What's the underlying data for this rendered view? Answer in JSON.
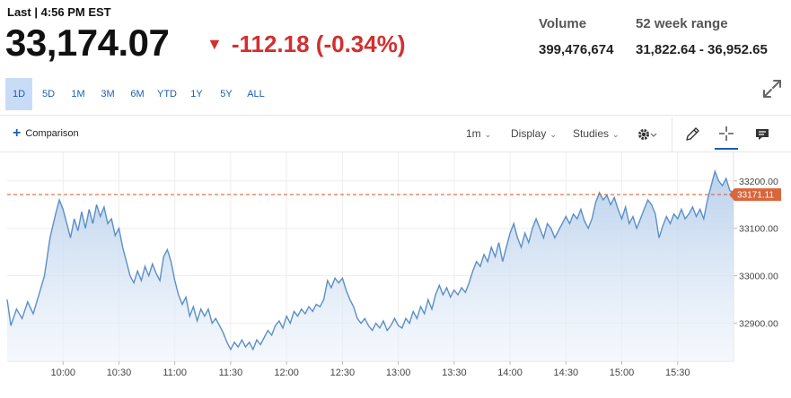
{
  "header": {
    "last_label": "Last | 4:56 PM EST",
    "price": "33,174.07",
    "change_arrow": "▼",
    "change": "-112.18 (-0.34%)",
    "change_color": "#d32f2f",
    "volume_label": "Volume",
    "volume_value": "399,476,674",
    "range_label": "52 week range",
    "range_value": "31,822.64 - 36,952.65"
  },
  "range_tabs": [
    "1D",
    "5D",
    "1M",
    "3M",
    "6M",
    "YTD",
    "1Y",
    "5Y",
    "ALL"
  ],
  "active_tab": "1D",
  "toolbar": {
    "comparison_label": "Comparison",
    "interval_label": "1m",
    "display_label": "Display",
    "studies_label": "Studies",
    "icons": [
      "gear-icon",
      "pencil-icon",
      "crosshair-icon",
      "comment-icon"
    ]
  },
  "chart_data": {
    "type": "area",
    "title": "",
    "xlabel": "",
    "ylabel": "",
    "x_ticks": [
      "10:00",
      "10:30",
      "11:00",
      "11:30",
      "12:00",
      "12:30",
      "13:00",
      "13:30",
      "14:00",
      "14:30",
      "15:00",
      "15:30"
    ],
    "y_ticks": [
      33200,
      33100,
      33000,
      32900
    ],
    "ylim": [
      32820,
      33260
    ],
    "xlim": [
      "09:30",
      "16:00"
    ],
    "grid": true,
    "reference_line": {
      "value": 33171.11,
      "label": "33171.11",
      "color": "#d9663a"
    },
    "series": [
      {
        "line_color": "#5b8fc7",
        "points": [
          [
            "09:30",
            32950
          ],
          [
            "09:32",
            32895
          ],
          [
            "09:35",
            32930
          ],
          [
            "09:38",
            32910
          ],
          [
            "09:41",
            32945
          ],
          [
            "09:44",
            32920
          ],
          [
            "09:47",
            32960
          ],
          [
            "09:50",
            33000
          ],
          [
            "09:53",
            33080
          ],
          [
            "09:56",
            33130
          ],
          [
            "09:58",
            33160
          ],
          [
            "10:00",
            33140
          ],
          [
            "10:02",
            33110
          ],
          [
            "10:04",
            33080
          ],
          [
            "10:06",
            33120
          ],
          [
            "10:08",
            33095
          ],
          [
            "10:10",
            33135
          ],
          [
            "10:12",
            33100
          ],
          [
            "10:14",
            33140
          ],
          [
            "10:16",
            33110
          ],
          [
            "10:18",
            33150
          ],
          [
            "10:20",
            33125
          ],
          [
            "10:22",
            33145
          ],
          [
            "10:24",
            33110
          ],
          [
            "10:26",
            33120
          ],
          [
            "10:28",
            33085
          ],
          [
            "10:30",
            33100
          ],
          [
            "10:32",
            33060
          ],
          [
            "10:34",
            33030
          ],
          [
            "10:36",
            33000
          ],
          [
            "10:38",
            32985
          ],
          [
            "10:40",
            33010
          ],
          [
            "10:42",
            32990
          ],
          [
            "10:44",
            33020
          ],
          [
            "10:46",
            33000
          ],
          [
            "10:48",
            33025
          ],
          [
            "10:50",
            33005
          ],
          [
            "10:52",
            32990
          ],
          [
            "10:54",
            33040
          ],
          [
            "10:56",
            33055
          ],
          [
            "10:58",
            33030
          ],
          [
            "11:00",
            32990
          ],
          [
            "11:02",
            32960
          ],
          [
            "11:04",
            32940
          ],
          [
            "11:06",
            32955
          ],
          [
            "11:08",
            32915
          ],
          [
            "11:10",
            32935
          ],
          [
            "11:12",
            32905
          ],
          [
            "11:14",
            32930
          ],
          [
            "11:16",
            32915
          ],
          [
            "11:18",
            32930
          ],
          [
            "11:20",
            32900
          ],
          [
            "11:22",
            32910
          ],
          [
            "11:24",
            32895
          ],
          [
            "11:26",
            32880
          ],
          [
            "11:28",
            32860
          ],
          [
            "11:30",
            32845
          ],
          [
            "11:32",
            32860
          ],
          [
            "11:34",
            32850
          ],
          [
            "11:36",
            32865
          ],
          [
            "11:38",
            32850
          ],
          [
            "11:40",
            32860
          ],
          [
            "11:42",
            32845
          ],
          [
            "11:44",
            32865
          ],
          [
            "11:46",
            32855
          ],
          [
            "11:48",
            32870
          ],
          [
            "11:50",
            32885
          ],
          [
            "11:52",
            32875
          ],
          [
            "11:54",
            32895
          ],
          [
            "11:56",
            32905
          ],
          [
            "11:58",
            32890
          ],
          [
            "12:00",
            32915
          ],
          [
            "12:02",
            32900
          ],
          [
            "12:04",
            32925
          ],
          [
            "12:06",
            32915
          ],
          [
            "12:08",
            32930
          ],
          [
            "12:10",
            32920
          ],
          [
            "12:12",
            32935
          ],
          [
            "12:14",
            32925
          ],
          [
            "12:16",
            32940
          ],
          [
            "12:18",
            32935
          ],
          [
            "12:20",
            32950
          ],
          [
            "12:22",
            32990
          ],
          [
            "12:24",
            32975
          ],
          [
            "12:26",
            32995
          ],
          [
            "12:28",
            32985
          ],
          [
            "12:30",
            32995
          ],
          [
            "12:32",
            32970
          ],
          [
            "12:34",
            32950
          ],
          [
            "12:36",
            32935
          ],
          [
            "12:38",
            32910
          ],
          [
            "12:40",
            32900
          ],
          [
            "12:42",
            32910
          ],
          [
            "12:44",
            32895
          ],
          [
            "12:46",
            32885
          ],
          [
            "12:48",
            32900
          ],
          [
            "12:50",
            32890
          ],
          [
            "12:52",
            32905
          ],
          [
            "12:54",
            32885
          ],
          [
            "12:56",
            32895
          ],
          [
            "12:58",
            32910
          ],
          [
            "13:00",
            32895
          ],
          [
            "13:02",
            32890
          ],
          [
            "13:04",
            32910
          ],
          [
            "13:06",
            32900
          ],
          [
            "13:08",
            32925
          ],
          [
            "13:10",
            32910
          ],
          [
            "13:12",
            32935
          ],
          [
            "13:14",
            32920
          ],
          [
            "13:16",
            32950
          ],
          [
            "13:18",
            32930
          ],
          [
            "13:20",
            32960
          ],
          [
            "13:22",
            32980
          ],
          [
            "13:24",
            32960
          ],
          [
            "13:26",
            32975
          ],
          [
            "13:28",
            32955
          ],
          [
            "13:30",
            32970
          ],
          [
            "13:32",
            32960
          ],
          [
            "13:34",
            32975
          ],
          [
            "13:36",
            32965
          ],
          [
            "13:38",
            32985
          ],
          [
            "13:40",
            33010
          ],
          [
            "13:42",
            33030
          ],
          [
            "13:44",
            33020
          ],
          [
            "13:46",
            33045
          ],
          [
            "13:48",
            33030
          ],
          [
            "13:50",
            33060
          ],
          [
            "13:52",
            33040
          ],
          [
            "13:54",
            33070
          ],
          [
            "13:56",
            33030
          ],
          [
            "13:58",
            33060
          ],
          [
            "14:00",
            33090
          ],
          [
            "14:02",
            33110
          ],
          [
            "14:04",
            33080
          ],
          [
            "14:06",
            33060
          ],
          [
            "14:08",
            33090
          ],
          [
            "14:10",
            33070
          ],
          [
            "14:12",
            33100
          ],
          [
            "14:14",
            33120
          ],
          [
            "14:16",
            33100
          ],
          [
            "14:18",
            33080
          ],
          [
            "14:20",
            33110
          ],
          [
            "14:22",
            33100
          ],
          [
            "14:24",
            33080
          ],
          [
            "14:26",
            33095
          ],
          [
            "14:28",
            33110
          ],
          [
            "14:30",
            33125
          ],
          [
            "14:32",
            33110
          ],
          [
            "14:34",
            33130
          ],
          [
            "14:36",
            33120
          ],
          [
            "14:38",
            33140
          ],
          [
            "14:40",
            33115
          ],
          [
            "14:42",
            33100
          ],
          [
            "14:44",
            33120
          ],
          [
            "14:46",
            33155
          ],
          [
            "14:48",
            33175
          ],
          [
            "14:50",
            33160
          ],
          [
            "14:52",
            33170
          ],
          [
            "14:54",
            33150
          ],
          [
            "14:56",
            33165
          ],
          [
            "14:58",
            33140
          ],
          [
            "15:00",
            33120
          ],
          [
            "15:02",
            33145
          ],
          [
            "15:04",
            33110
          ],
          [
            "15:06",
            33125
          ],
          [
            "15:08",
            33100
          ],
          [
            "15:10",
            33120
          ],
          [
            "15:12",
            33140
          ],
          [
            "15:14",
            33160
          ],
          [
            "15:16",
            33150
          ],
          [
            "15:18",
            33130
          ],
          [
            "15:20",
            33080
          ],
          [
            "15:22",
            33105
          ],
          [
            "15:24",
            33125
          ],
          [
            "15:26",
            33110
          ],
          [
            "15:28",
            33130
          ],
          [
            "15:30",
            33120
          ],
          [
            "15:32",
            33140
          ],
          [
            "15:34",
            33120
          ],
          [
            "15:36",
            33130
          ],
          [
            "15:38",
            33145
          ],
          [
            "15:40",
            33125
          ],
          [
            "15:42",
            33140
          ],
          [
            "15:44",
            33120
          ],
          [
            "15:46",
            33160
          ],
          [
            "15:48",
            33190
          ],
          [
            "15:50",
            33220
          ],
          [
            "15:52",
            33200
          ],
          [
            "15:54",
            33190
          ],
          [
            "15:56",
            33205
          ],
          [
            "15:58",
            33180
          ],
          [
            "16:00",
            33174.07
          ]
        ]
      }
    ]
  }
}
